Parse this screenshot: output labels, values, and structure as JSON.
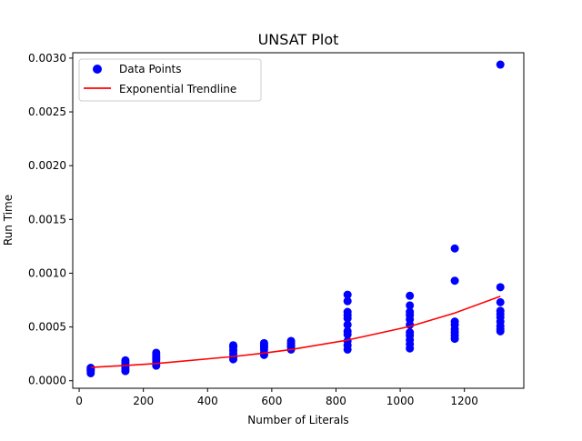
{
  "chart_data": {
    "type": "scatter",
    "title": "UNSAT Plot",
    "xlabel": "Number of Literals",
    "ylabel": "Run Time",
    "xlim": [
      -20,
      1385
    ],
    "ylim": [
      -7e-05,
      0.00305
    ],
    "xticks": [
      0,
      200,
      400,
      600,
      800,
      1000,
      1200
    ],
    "xtick_labels": [
      "0",
      "200",
      "400",
      "600",
      "800",
      "1000",
      "1200"
    ],
    "yticks": [
      0.0,
      0.0005,
      0.001,
      0.0015,
      0.002,
      0.0025,
      0.003
    ],
    "ytick_labels": [
      "0.0000",
      "0.0005",
      "0.0010",
      "0.0015",
      "0.0020",
      "0.0025",
      "0.0030"
    ],
    "grid": false,
    "legend_position": "top-left",
    "series": [
      {
        "name": "Data Points",
        "kind": "scatter",
        "color": "#0000ff",
        "points": [
          [
            36,
            7e-05
          ],
          [
            36,
            9e-05
          ],
          [
            36,
            0.0001
          ],
          [
            36,
            0.00011
          ],
          [
            36,
            0.00012
          ],
          [
            144,
            9e-05
          ],
          [
            144,
            0.00011
          ],
          [
            144,
            0.00013
          ],
          [
            144,
            0.00015
          ],
          [
            144,
            0.00017
          ],
          [
            144,
            0.00019
          ],
          [
            240,
            0.00014
          ],
          [
            240,
            0.00016
          ],
          [
            240,
            0.00018
          ],
          [
            240,
            0.0002
          ],
          [
            240,
            0.00022
          ],
          [
            240,
            0.00024
          ],
          [
            240,
            0.00026
          ],
          [
            480,
            0.0002
          ],
          [
            480,
            0.00022
          ],
          [
            480,
            0.00025
          ],
          [
            480,
            0.00028
          ],
          [
            480,
            0.00031
          ],
          [
            480,
            0.00033
          ],
          [
            576,
            0.00024
          ],
          [
            576,
            0.00026
          ],
          [
            576,
            0.00029
          ],
          [
            576,
            0.00031
          ],
          [
            576,
            0.00033
          ],
          [
            576,
            0.00035
          ],
          [
            660,
            0.00029
          ],
          [
            660,
            0.00031
          ],
          [
            660,
            0.00033
          ],
          [
            660,
            0.00035
          ],
          [
            660,
            0.00037
          ],
          [
            836,
            0.00029
          ],
          [
            836,
            0.00033
          ],
          [
            836,
            0.00037
          ],
          [
            836,
            0.00043
          ],
          [
            836,
            0.00046
          ],
          [
            836,
            0.00052
          ],
          [
            836,
            0.00058
          ],
          [
            836,
            0.00061
          ],
          [
            836,
            0.00064
          ],
          [
            836,
            0.00074
          ],
          [
            836,
            0.0008
          ],
          [
            1030,
            0.0003
          ],
          [
            1030,
            0.00034
          ],
          [
            1030,
            0.00038
          ],
          [
            1030,
            0.00042
          ],
          [
            1030,
            0.00045
          ],
          [
            1030,
            0.00052
          ],
          [
            1030,
            0.00057
          ],
          [
            1030,
            0.00061
          ],
          [
            1030,
            0.00064
          ],
          [
            1030,
            0.0007
          ],
          [
            1030,
            0.00079
          ],
          [
            1170,
            0.00039
          ],
          [
            1170,
            0.00042
          ],
          [
            1170,
            0.00045
          ],
          [
            1170,
            0.00048
          ],
          [
            1170,
            0.00052
          ],
          [
            1170,
            0.00055
          ],
          [
            1170,
            0.00093
          ],
          [
            1170,
            0.00123
          ],
          [
            1312,
            0.00046
          ],
          [
            1312,
            0.00048
          ],
          [
            1312,
            0.00051
          ],
          [
            1312,
            0.00055
          ],
          [
            1312,
            0.00059
          ],
          [
            1312,
            0.00062
          ],
          [
            1312,
            0.00065
          ],
          [
            1312,
            0.00073
          ],
          [
            1312,
            0.00087
          ],
          [
            1312,
            0.00294
          ]
        ]
      },
      {
        "name": "Exponential Trendline",
        "kind": "line",
        "color": "#ff0000",
        "points": [
          [
            36,
            0.000124
          ],
          [
            144,
            0.000142
          ],
          [
            240,
            0.00016
          ],
          [
            480,
            0.000225
          ],
          [
            576,
            0.000257
          ],
          [
            660,
            0.00029
          ],
          [
            836,
            0.000378
          ],
          [
            1030,
            0.000505
          ],
          [
            1170,
            0.00063
          ],
          [
            1312,
            0.000785
          ]
        ]
      }
    ]
  }
}
